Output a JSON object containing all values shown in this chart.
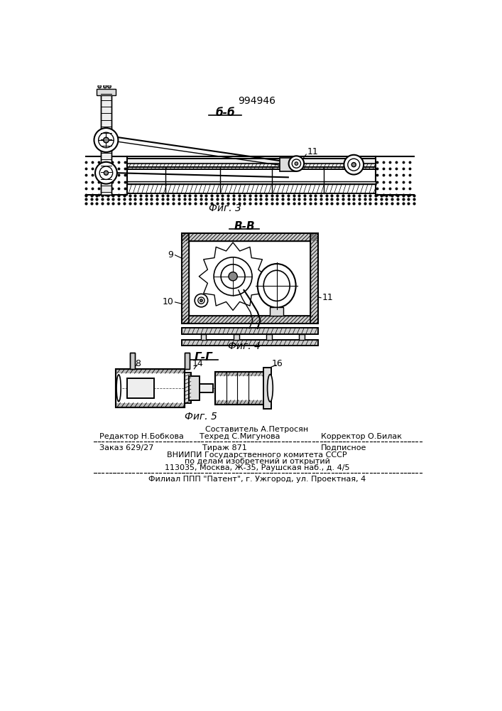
{
  "patent_number": "994946",
  "fig3_label": "б-б",
  "fig4_label": "В-В",
  "fig5_label": "Г-Г",
  "fig3_caption": "Фиг. 3",
  "fig4_caption": "Фиг. 4",
  "fig5_caption": "Фиг. 5",
  "footer_line1": "Составитель А.Петросян",
  "footer_line2_left": "Редактор Н.Бобкова",
  "footer_line2_mid": "Техред С.Мигунова",
  "footer_line2_right": "Корректор О.Билак",
  "footer_line3_left": "Заказ 629/27",
  "footer_line3_mid": "Тираж 871",
  "footer_line3_right": "Подписное",
  "footer_line4": "ВНИИПИ Государственного комитета СССР",
  "footer_line5": "по делам изобретений и открытий",
  "footer_line6": "113035, Москва, Ж-35, Раушская наб., д. 4/5",
  "footer_line7": "Филиал ППП \"Патент\", г. Ужгород, ул. Проектная, 4",
  "bg_color": "#ffffff",
  "line_color": "#000000"
}
